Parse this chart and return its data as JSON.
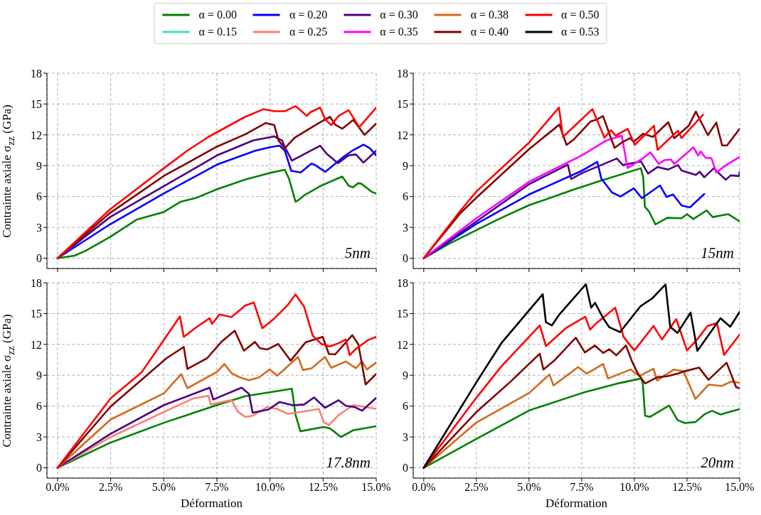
{
  "chart_data": [
    {
      "type": "line",
      "ylabel": "Contrainte axiale σ$_{zz}$ (GPa)",
      "xlim": [
        -0.5,
        15
      ],
      "ylim": [
        -1,
        18
      ],
      "xticks": [
        {
          "value": 0,
          "label": null
        },
        {
          "value": 2.5,
          "label": null
        },
        {
          "value": 5,
          "label": null
        },
        {
          "value": 7.5,
          "label": null
        },
        {
          "value": 10,
          "label": null
        },
        {
          "value": 12.5,
          "label": null
        },
        {
          "value": 15,
          "label": null
        }
      ],
      "yticks": [
        0,
        3,
        6,
        9,
        12,
        15,
        18
      ],
      "grid": true,
      "legend": "top",
      "tick_labels": "y",
      "annotations": [
        "5nm"
      ],
      "series": [
        {
          "name": "α = 0.00",
          "color": "#008000",
          "x": [
            0,
            0.79,
            1.3,
            2.47,
            3.74,
            5.0,
            5.8,
            6.5,
            7.5,
            8.83,
            10.0,
            10.7,
            10.9,
            11.2,
            11.3,
            11.6,
            12.4,
            13.4,
            13.7,
            13.9,
            14.15,
            14.3,
            14.8,
            15
          ],
          "values": [
            0,
            0.24,
            0.7,
            2.07,
            3.77,
            4.5,
            5.5,
            5.85,
            6.7,
            7.65,
            8.3,
            8.6,
            7.7,
            5.5,
            5.6,
            6.1,
            7.05,
            7.95,
            7.05,
            6.9,
            7.3,
            7.25,
            6.45,
            6.3
          ]
        },
        {
          "name": "α = 0.15",
          "color": "#40e0d0"
        },
        {
          "name": "α = 0.20",
          "color": "#0000ff",
          "x": [
            0,
            2.47,
            5.0,
            7.5,
            9.3,
            10.0,
            10.45,
            10.7,
            11.0,
            11.45,
            11.95,
            12.1,
            12.6,
            13.45,
            13.9,
            14.4,
            14.7,
            15
          ],
          "values": [
            0,
            3.3,
            6.3,
            9.1,
            10.45,
            10.8,
            10.95,
            10.45,
            8.5,
            8.35,
            9.2,
            9.1,
            8.4,
            9.85,
            10.5,
            11.05,
            10.7,
            10.0
          ]
        },
        {
          "name": "α = 0.30",
          "color": "#4b0082",
          "x": [
            0,
            2.47,
            5.0,
            7.5,
            9.2,
            10.2,
            10.57,
            10.7,
            11.03,
            12.36,
            12.65,
            13.2,
            13.7,
            14.04,
            14.4,
            15
          ],
          "values": [
            0,
            4.0,
            7.0,
            10.0,
            11.45,
            11.85,
            11.45,
            10.8,
            9.5,
            10.95,
            10.2,
            9.25,
            10.0,
            10.1,
            9.3,
            10.45
          ]
        },
        {
          "name": "α = 0.40",
          "color": "#800000",
          "x": [
            0,
            2.47,
            5.0,
            7.5,
            8.83,
            9.8,
            10.2,
            10.4,
            10.7,
            11.15,
            12.3,
            12.83,
            13.06,
            13.4,
            13.92,
            14.45,
            15
          ],
          "values": [
            0,
            4.4,
            8.0,
            10.85,
            12.05,
            13.15,
            12.95,
            11.45,
            10.7,
            11.7,
            13.15,
            13.75,
            13.0,
            12.6,
            13.45,
            12.0,
            13.1
          ]
        },
        {
          "name": "α = 0.50",
          "color": "#ff0000",
          "x": [
            0,
            2.47,
            5.0,
            6.1,
            7.1,
            8.83,
            9.7,
            10.2,
            10.7,
            11.2,
            11.73,
            11.9,
            12.36,
            12.6,
            12.88,
            13.23,
            13.7,
            14.2,
            15
          ],
          "values": [
            0,
            4.75,
            8.75,
            10.45,
            11.8,
            13.75,
            14.5,
            14.3,
            14.3,
            14.8,
            13.85,
            14.2,
            14.65,
            13.5,
            12.95,
            13.85,
            14.4,
            12.75,
            14.65
          ]
        }
      ]
    },
    {
      "type": "line",
      "xlim": [
        -0.5,
        15
      ],
      "ylim": [
        -1,
        18
      ],
      "xticks": [
        {
          "value": 0,
          "label": null
        },
        {
          "value": 2.5,
          "label": null
        },
        {
          "value": 5,
          "label": null
        },
        {
          "value": 7.5,
          "label": null
        },
        {
          "value": 10,
          "label": null
        },
        {
          "value": 12.5,
          "label": null
        },
        {
          "value": 15,
          "label": null
        }
      ],
      "yticks": [
        0,
        3,
        6,
        9,
        12,
        15,
        18
      ],
      "grid": true,
      "legend": "top",
      "tick_labels": "y",
      "annotations": [
        "15nm"
      ],
      "series": [
        {
          "name": "α = 0.00",
          "color": "#008000",
          "x": [
            0,
            1.22,
            3.49,
            4.97,
            7.13,
            8.37,
            10.31,
            10.42,
            10.5,
            10.7,
            11.0,
            11.56,
            12.24,
            12.5,
            12.8,
            13.43,
            13.72,
            14.45,
            15
          ],
          "values": [
            0,
            1.43,
            3.74,
            5.13,
            6.68,
            7.51,
            8.75,
            7.87,
            5.0,
            4.53,
            3.29,
            3.93,
            3.89,
            4.29,
            3.81,
            4.65,
            4.0,
            4.29,
            3.58
          ]
        },
        {
          "name": "α = 0.20",
          "color": "#0000ff",
          "x": [
            0,
            2.5,
            5.0,
            7.5,
            8.24,
            8.43,
            8.94,
            9.34,
            9.97,
            10.36,
            11.22,
            11.53,
            11.84,
            12.24,
            12.64,
            13.32
          ],
          "values": [
            0,
            3.34,
            6.2,
            8.5,
            9.37,
            7.75,
            6.39,
            6.0,
            6.8,
            5.84,
            7.08,
            5.96,
            6.2,
            5.13,
            4.94,
            6.25
          ]
        },
        {
          "name": "α = 0.30",
          "color": "#4b0082",
          "x": [
            0,
            2.5,
            5.0,
            6.84,
            7.0,
            7.5,
            9.17,
            9.45,
            10.31,
            10.65,
            11.1,
            11.61,
            12.07,
            12.24,
            12.92,
            13.1,
            13.32,
            13.77,
            14.34,
            14.57,
            14.97,
            15
          ],
          "values": [
            0,
            3.58,
            7.2,
            9.1,
            7.7,
            8.27,
            9.7,
            9.06,
            9.42,
            8.23,
            8.87,
            8.63,
            9.06,
            8.54,
            8.11,
            8.42,
            7.87,
            8.75,
            7.63,
            8.06,
            7.99,
            8.4
          ]
        },
        {
          "name": "α = 0.35",
          "color": "#ff00ff",
          "x": [
            0,
            2.5,
            5.0,
            7.5,
            8.66,
            9.4,
            9.68,
            10.36,
            10.76,
            11.16,
            11.44,
            11.73,
            11.9,
            12.8,
            13.03,
            13.15,
            13.38,
            13.66,
            13.89,
            14.4,
            15
          ],
          "values": [
            0,
            3.89,
            7.44,
            10.0,
            11.44,
            11.92,
            8.77,
            9.66,
            10.3,
            9.18,
            9.54,
            9.6,
            9.18,
            10.78,
            10.0,
            10.37,
            9.78,
            9.73,
            8.35,
            9.11,
            9.85
          ]
        },
        {
          "name": "α = 0.40",
          "color": "#800000",
          "x": [
            0,
            1.75,
            2.5,
            5.0,
            6.44,
            6.78,
            7.13,
            7.92,
            8.2,
            8.51,
            9.06,
            9.4,
            9.8,
            9.97,
            10.42,
            10.88,
            11.61,
            11.9,
            12.58,
            12.92,
            13.49,
            13.89,
            14.17,
            14.4,
            15
          ],
          "values": [
            0,
            4.41,
            5.89,
            10.61,
            13.0,
            11.02,
            11.56,
            13.3,
            13.47,
            13.83,
            10.73,
            11.25,
            11.68,
            11.33,
            12.11,
            11.8,
            13.23,
            11.68,
            12.88,
            14.26,
            11.97,
            13.19,
            10.97,
            10.97,
            12.59
          ]
        },
        {
          "name": "α = 0.50",
          "color": "#ff0000",
          "x": [
            0,
            1.75,
            2.5,
            5.0,
            6.42,
            6.61,
            7.35,
            8.01,
            8.58,
            8.89,
            9.11,
            9.68,
            10.02,
            10.93,
            11.1,
            12.07,
            12.24,
            13.26
          ],
          "values": [
            0,
            4.65,
            6.49,
            11.25,
            14.66,
            11.8,
            13.23,
            14.5,
            11.73,
            12.45,
            11.92,
            12.59,
            11.02,
            12.88,
            10.54,
            12.4,
            11.68,
            13.95
          ]
        }
      ]
    },
    {
      "type": "line",
      "xlabel": "Déformation",
      "ylabel": "Contrainte axiale σ$_{zz}$ (GPa)",
      "xlim": [
        -0.5,
        15
      ],
      "ylim": [
        -1,
        18
      ],
      "xticks": [
        {
          "value": 0,
          "label": "0.0%"
        },
        {
          "value": 2.5,
          "label": "2.5%"
        },
        {
          "value": 5,
          "label": "5.0%"
        },
        {
          "value": 7.5,
          "label": "7.5%"
        },
        {
          "value": 10,
          "label": "10.0%"
        },
        {
          "value": 12.5,
          "label": "12.5%"
        },
        {
          "value": 15,
          "label": "15.0%"
        }
      ],
      "yticks": [
        0,
        3,
        6,
        9,
        12,
        15,
        18
      ],
      "grid": true,
      "legend": "top",
      "annotations": [
        "17.8nm"
      ],
      "series": [
        {
          "name": "α = 0.00",
          "color": "#008000",
          "x": [
            0,
            2.5,
            5.01,
            7.5,
            8.83,
            11.03,
            11.2,
            11.43,
            12.53,
            12.82,
            13.34,
            13.92,
            15
          ],
          "values": [
            0,
            2.46,
            4.38,
            6.1,
            6.96,
            7.69,
            5.18,
            3.55,
            3.97,
            3.84,
            2.99,
            3.65,
            4.04
          ]
        },
        {
          "name": "α = 0.25",
          "color": "#fa8072",
          "x": [
            0,
            2.5,
            5.01,
            6.4,
            7.1,
            7.21,
            8.19,
            8.48,
            8.83,
            9.18,
            9.87,
            10.34,
            10.86,
            12.3,
            12.53,
            12.77,
            13.23,
            13.92,
            15
          ],
          "values": [
            0,
            2.99,
            5.43,
            6.76,
            7.0,
            6.16,
            6.59,
            5.47,
            4.94,
            5.06,
            5.91,
            5.72,
            5.23,
            5.72,
            4.45,
            4.14,
            5.13,
            6.1,
            5.74
          ]
        },
        {
          "name": "α = 0.30",
          "color": "#4b0082",
          "x": [
            0,
            2.5,
            5.01,
            7.16,
            7.33,
            8.66,
            9.01,
            9.18,
            9.93,
            10.45,
            11.09,
            11.61,
            12.07,
            12.59,
            13.23,
            13.57,
            13.98,
            14.33,
            15
          ],
          "values": [
            0,
            3.31,
            6.1,
            7.79,
            6.64,
            7.79,
            7.18,
            5.35,
            5.67,
            6.4,
            6.08,
            6.16,
            6.84,
            5.84,
            6.57,
            6.03,
            5.91,
            5.55,
            6.81
          ]
        },
        {
          "name": "α = 0.38",
          "color": "#d2691e",
          "x": [
            0,
            2.5,
            5.01,
            5.82,
            6.11,
            7.5,
            7.85,
            8.19,
            8.54,
            9.0,
            9.47,
            9.99,
            10.34,
            11.32,
            11.55,
            11.96,
            12.59,
            12.88,
            13.57,
            14.04,
            14.33,
            14.56,
            15
          ],
          "values": [
            0,
            4.7,
            7.25,
            9.12,
            7.74,
            9.32,
            10.1,
            9.2,
            8.83,
            8.52,
            8.78,
            9.56,
            8.95,
            10.78,
            9.51,
            9.68,
            10.78,
            9.73,
            10.34,
            9.68,
            10.34,
            9.56,
            10.24
          ]
        },
        {
          "name": "α = 0.40",
          "color": "#800000",
          "x": [
            0,
            2.5,
            3.97,
            5.13,
            5.94,
            6.11,
            7.04,
            7.73,
            8.34,
            8.77,
            9.29,
            9.53,
            9.87,
            10.39,
            10.97,
            11.67,
            12.48,
            12.77,
            13.06,
            13.87,
            14.16,
            14.5,
            15
          ],
          "values": [
            0,
            5.96,
            8.59,
            10.66,
            11.75,
            9.61,
            10.66,
            12.29,
            13.33,
            11.39,
            12.24,
            11.63,
            11.51,
            12.04,
            10.41,
            12.19,
            12.73,
            11.07,
            11.02,
            12.9,
            12.0,
            8.1,
            9.12
          ]
        },
        {
          "name": "α = 0.50",
          "color": "#ff0000",
          "x": [
            0,
            2.5,
            3.97,
            5.76,
            5.94,
            6.52,
            7.16,
            7.27,
            7.62,
            8.19,
            8.83,
            9.24,
            9.64,
            10.22,
            10.86,
            11.2,
            11.61,
            12.01,
            12.42,
            12.82,
            13.23,
            13.57,
            13.75,
            14.04,
            14.62,
            15
          ],
          "values": [
            0,
            6.76,
            9.32,
            14.72,
            12.73,
            13.65,
            14.55,
            13.99,
            14.91,
            14.67,
            15.77,
            16.08,
            13.58,
            14.55,
            15.89,
            16.86,
            15.65,
            12.85,
            12.04,
            11.8,
            12.12,
            12.48,
            10.95,
            11.56,
            12.43,
            12.73
          ]
        }
      ]
    },
    {
      "type": "line",
      "xlabel": "Déformation",
      "xlim": [
        -0.5,
        15
      ],
      "ylim": [
        -1,
        18
      ],
      "xticks": [
        {
          "value": 0,
          "label": "0.0%"
        },
        {
          "value": 2.5,
          "label": "2.5%"
        },
        {
          "value": 5,
          "label": "5.0%"
        },
        {
          "value": 7.5,
          "label": "7.5%"
        },
        {
          "value": 10,
          "label": "10.0%"
        },
        {
          "value": 12.5,
          "label": "12.5%"
        },
        {
          "value": 15,
          "label": "15.0%"
        }
      ],
      "yticks": [
        0,
        3,
        6,
        9,
        12,
        15,
        18
      ],
      "grid": true,
      "legend": "top",
      "annotations": [
        "20nm"
      ],
      "series": [
        {
          "name": "α = 0.00",
          "color": "#008000",
          "x": [
            0,
            2.5,
            5.02,
            7.56,
            9.32,
            10.32,
            10.4,
            10.51,
            10.74,
            11.65,
            12.05,
            12.39,
            12.9,
            13.35,
            13.69,
            14.09,
            15
          ],
          "values": [
            0,
            2.81,
            5.59,
            7.3,
            8.25,
            8.68,
            8.2,
            5.06,
            4.95,
            6.06,
            4.64,
            4.35,
            4.45,
            5.23,
            5.54,
            5.18,
            5.71
          ]
        },
        {
          "name": "α = 0.38",
          "color": "#d2691e",
          "x": [
            0,
            2.5,
            5.02,
            5.97,
            6.16,
            7.33,
            7.73,
            8.52,
            8.75,
            9.83,
            10.23,
            10.91,
            11.08,
            11.88,
            12.33,
            12.9,
            13.52,
            14.15,
            14.6,
            15
          ],
          "values": [
            0,
            4.4,
            7.3,
            9.08,
            8.01,
            9.8,
            9.15,
            10.1,
            8.68,
            9.56,
            8.92,
            9.63,
            8.49,
            9.56,
            9.39,
            6.7,
            8.08,
            7.96,
            8.39,
            8.27
          ]
        },
        {
          "name": "α = 0.40",
          "color": "#800000",
          "x": [
            0,
            2.5,
            4.09,
            5.51,
            5.68,
            6.19,
            7.22,
            7.65,
            8.13,
            8.52,
            8.81,
            9.15,
            9.6,
            9.89,
            10.17,
            10.51,
            11.08,
            11.59,
            12.05,
            12.39,
            13.07,
            13.52,
            14.38,
            14.83,
            15
          ],
          "values": [
            0,
            5.42,
            8.32,
            11.1,
            9.56,
            10.41,
            12.65,
            11.22,
            11.89,
            11.17,
            11.53,
            10.94,
            11.89,
            10.34,
            9.15,
            8.2,
            8.8,
            8.92,
            9.15,
            9.39,
            9.75,
            8.56,
            10.22,
            7.85,
            7.73
          ]
        },
        {
          "name": "α = 0.50",
          "color": "#ff0000",
          "x": [
            0,
            2.5,
            3.69,
            5.51,
            5.8,
            6.76,
            7.67,
            7.9,
            8.18,
            9.09,
            9.49,
            10.0,
            10.91,
            11.31,
            11.99,
            12.5,
            13.01,
            13.47,
            13.92,
            14.26,
            15
          ],
          "values": [
            0,
            6.82,
            9.87,
            13.84,
            11.84,
            13.6,
            14.69,
            13.43,
            14.03,
            15.57,
            12.72,
            11.41,
            13.79,
            12.48,
            14.46,
            11.41,
            12.55,
            13.79,
            14.08,
            10.98,
            12.96
          ]
        },
        {
          "name": "α = 0.53",
          "color": "#000000",
          "x": [
            0,
            2.5,
            3.69,
            5.65,
            5.8,
            6.08,
            6.42,
            7.7,
            7.95,
            8.13,
            8.52,
            8.81,
            9.32,
            10.28,
            10.85,
            11.48,
            11.7,
            12.05,
            12.67,
            12.99,
            14.09,
            14.55,
            15
          ],
          "values": [
            0,
            8.32,
            12.13,
            16.88,
            14.15,
            13.84,
            14.86,
            17.85,
            15.57,
            16.05,
            14.55,
            13.67,
            13.2,
            15.69,
            16.48,
            17.83,
            13.72,
            13.12,
            15.1,
            11.37,
            14.55,
            13.72,
            15.17
          ]
        }
      ]
    }
  ]
}
